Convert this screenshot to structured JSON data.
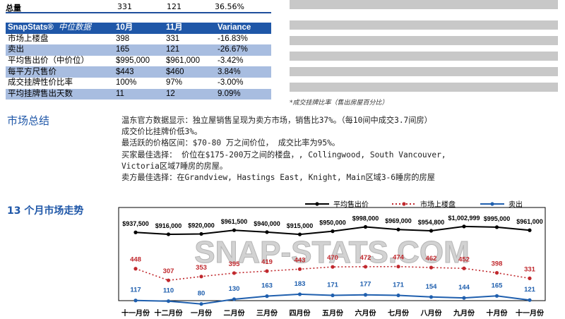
{
  "totals": {
    "label": "总量",
    "oct": "331",
    "nov": "121",
    "variance": "36.56%"
  },
  "table": {
    "header": {
      "brand": "SnapStats®",
      "title": "中位数据",
      "col1": "10月",
      "col2": "11月",
      "col3": "Variance"
    },
    "rows": [
      {
        "label": "市场上楼盘",
        "c1": "398",
        "c2": "331",
        "c3": "-16.83%"
      },
      {
        "label": "卖出",
        "c1": "165",
        "c2": "121",
        "c3": "-26.67%"
      },
      {
        "label": "平均售出价（中价位）",
        "c1": "$995,000",
        "c2": "$961,000",
        "c3": "-3.42%"
      },
      {
        "label": "每平方尺售价",
        "c1": "$443",
        "c2": "$460",
        "c3": "3.84%"
      },
      {
        "label": "成交挂牌性价比率",
        "c1": "100%",
        "c2": "97%",
        "c3": "-3.00%"
      },
      {
        "label": "平均挂牌售出天数",
        "c1": "11",
        "c2": "12",
        "c3": "9.09%"
      }
    ]
  },
  "footnote": "*成交挂牌比率（售出房屋百分比）",
  "summary": {
    "title": "市场总结",
    "lines": [
      "温东官方数据显示：独立屋销售呈现为卖方市场，销售比37%。（每10间中成交3.7间房）",
      "成交价比挂牌价低3%。",
      "最活跃的价格区间：$70-80 万之间价位，  成交比率为95%。",
      "买家最佳选择：  价位在$175-200万之间的楼盘，, Collingwood, South Vancouver,",
      "Victoria区域7睡房的房屋。",
      "卖方最佳选择：在Grandview, Hastings East, Knight, Main区域3-6睡房的房屋"
    ]
  },
  "trend_title": "13 个月市场走势",
  "watermark": "SNAP-STATS.COM",
  "chart_data": {
    "type": "line",
    "categories": [
      "十一月份",
      "十二月份",
      "一月份",
      "二月份",
      "三月份",
      "四月份",
      "五月份",
      "六月份",
      "七月份",
      "八月份",
      "九月份",
      "十月份",
      "十一月份"
    ],
    "legend_position": "top-right",
    "grid": false,
    "series": [
      {
        "name": "平均售出价",
        "color": "#000000",
        "style": "solid",
        "values": [
          937500,
          916000,
          920000,
          961500,
          940000,
          915000,
          950000,
          998000,
          969000,
          954800,
          1002999,
          995000,
          961000
        ],
        "labels": [
          "$937,500",
          "$916,000",
          "$920,000",
          "$961,500",
          "$940,000",
          "$915,000",
          "$950,000",
          "$998,000",
          "$969,000",
          "$954,800",
          "$1,002,999",
          "$995,000",
          "$961,000"
        ]
      },
      {
        "name": "市场上楼盘",
        "color": "#c0282d",
        "style": "dotted",
        "values": [
          448,
          307,
          353,
          395,
          419,
          443,
          470,
          472,
          474,
          462,
          452,
          398,
          331
        ],
        "labels": [
          "448",
          "307",
          "353",
          "395",
          "419",
          "443",
          "470",
          "472",
          "474",
          "462",
          "452",
          "398",
          "331"
        ]
      },
      {
        "name": "卖出",
        "color": "#1f5fae",
        "style": "solid",
        "values": [
          117,
          110,
          80,
          130,
          163,
          183,
          171,
          177,
          171,
          154,
          144,
          165,
          121
        ],
        "labels": [
          "117",
          "110",
          "80",
          "130",
          "163",
          "183",
          "171",
          "177",
          "171",
          "154",
          "144",
          "165",
          "121"
        ]
      }
    ]
  }
}
